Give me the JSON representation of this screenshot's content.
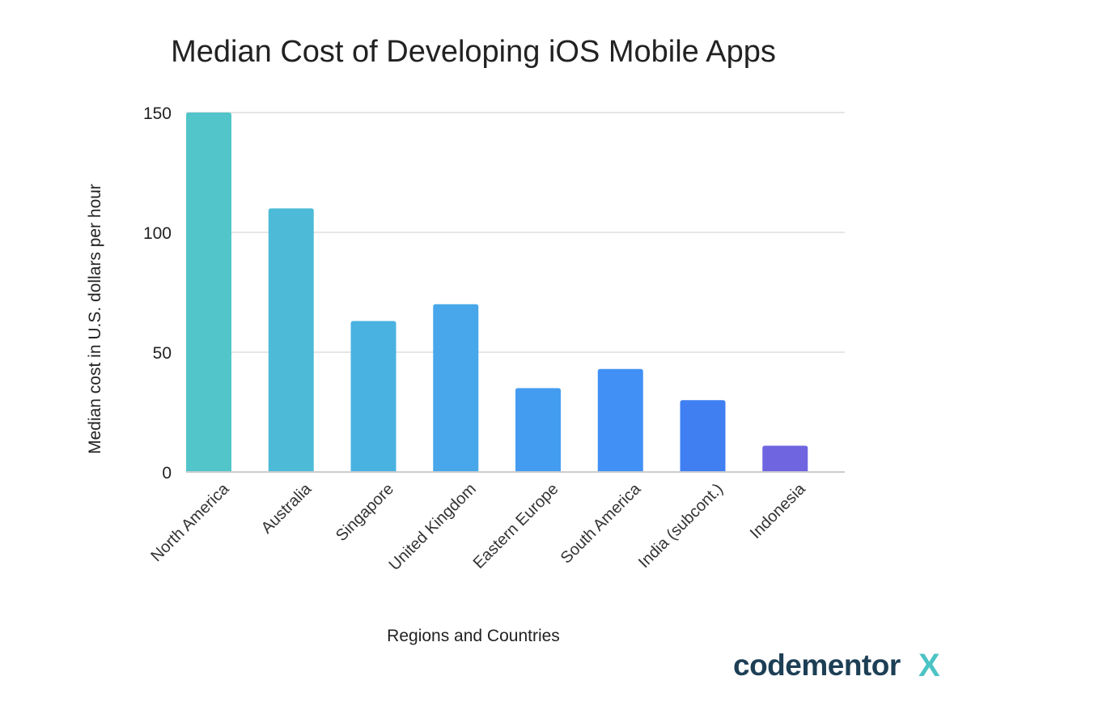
{
  "chart_data": {
    "type": "bar",
    "title": "Median Cost of Developing iOS Mobile Apps",
    "xlabel": "Regions and Countries",
    "ylabel": "Median cost in U.S. dollars per hour",
    "ylim": [
      0,
      150
    ],
    "yticks": [
      0,
      50,
      100,
      150
    ],
    "ytick_labels": [
      "0",
      "50",
      "100",
      "150"
    ],
    "grid": true,
    "categories": [
      "North America",
      "Australia",
      "Singapore",
      "United Kingdom",
      "Eastern Europe",
      "South America",
      "India (subcont.)",
      "Indonesia"
    ],
    "values": [
      150,
      110,
      63,
      70,
      35,
      43,
      30,
      11
    ],
    "colors": [
      "#52c5ca",
      "#4dbbd7",
      "#4ab2e1",
      "#47a7ea",
      "#449cf0",
      "#4190f6",
      "#3f7ff2",
      "#6f65e0"
    ]
  },
  "branding": {
    "logo_text": "codementor",
    "logo_mark": "X",
    "colors": {
      "text": "#1d3f56",
      "mark": "#4cc3c4"
    }
  }
}
